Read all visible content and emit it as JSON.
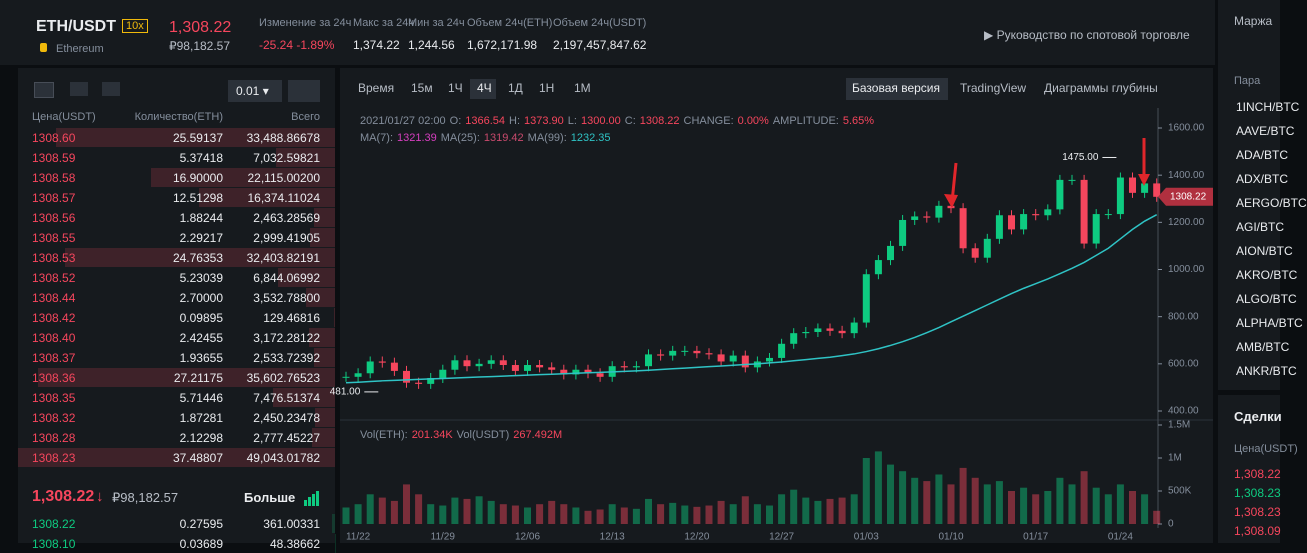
{
  "header": {
    "pair": "ETH/USDT",
    "leverage": "10x",
    "name": "Ethereum",
    "price": "1,308.22",
    "price_rub": "₽98,182.57",
    "stats": [
      {
        "label": "Изменение за 24ч",
        "value": "-25.24 -1.89%"
      },
      {
        "label": "Макс за 24ч",
        "value": "1,374.22"
      },
      {
        "label": "Мин за 24ч",
        "value": "1,244.56"
      },
      {
        "label": "Объем 24ч(ETH)",
        "value": "1,672,171.98"
      },
      {
        "label": "Объем 24ч(USDT)",
        "value": "2,197,457,847.62"
      }
    ],
    "guide": "Руководство по спотовой торговле"
  },
  "orderbook": {
    "step": "0.01",
    "headers": [
      "Цена(USDT)",
      "Количество(ETH)",
      "Всего"
    ],
    "asks": [
      [
        "1308.60",
        "25.59137",
        "33,488.86678"
      ],
      [
        "1308.59",
        "5.37418",
        "7,032.59821"
      ],
      [
        "1308.58",
        "16.90000",
        "22,115.00200"
      ],
      [
        "1308.57",
        "12.51298",
        "16,374.11024"
      ],
      [
        "1308.56",
        "1.88244",
        "2,463.28569"
      ],
      [
        "1308.55",
        "2.29217",
        "2,999.41905"
      ],
      [
        "1308.53",
        "24.76353",
        "32,403.82191"
      ],
      [
        "1308.52",
        "5.23039",
        "6,844.06992"
      ],
      [
        "1308.44",
        "2.70000",
        "3,532.78800"
      ],
      [
        "1308.42",
        "0.09895",
        "129.46816"
      ],
      [
        "1308.40",
        "2.42455",
        "3,172.28122"
      ],
      [
        "1308.37",
        "1.93655",
        "2,533.72392"
      ],
      [
        "1308.36",
        "27.21175",
        "35,602.76523"
      ],
      [
        "1308.35",
        "5.71446",
        "7,476.51374"
      ],
      [
        "1308.32",
        "1.87281",
        "2,450.23478"
      ],
      [
        "1308.28",
        "2.12298",
        "2,777.45227"
      ],
      [
        "1308.23",
        "37.48807",
        "49,043.01782"
      ]
    ],
    "last_price": "1,308.22",
    "arrow": "↓",
    "last_price_rub": "₽98,182.57",
    "more": "Больше",
    "bids": [
      [
        "1308.22",
        "0.27595",
        "361.00331"
      ],
      [
        "1308.10",
        "0.03689",
        "48.38662"
      ]
    ]
  },
  "toolbar": {
    "intervals": [
      "Время",
      "15м",
      "1Ч",
      "4Ч",
      "1Д",
      "1Н",
      "1М"
    ],
    "views": [
      "Базовая версия",
      "TradingView",
      "Диаграммы глубины"
    ]
  },
  "chart_data": {
    "type": "candlestick",
    "info": {
      "time": "2021/01/27 02:00",
      "fields": [
        {
          "label": "O:",
          "value": "1366.54"
        },
        {
          "label": "H:",
          "value": "1373.90"
        },
        {
          "label": "L:",
          "value": "1300.00"
        },
        {
          "label": "C:",
          "value": "1308.22"
        },
        {
          "label": "CHANGE:",
          "value": "0.00%"
        },
        {
          "label": "AMPLITUDE:",
          "value": "5.65%"
        }
      ]
    },
    "ma": [
      {
        "label": "MA(7):",
        "value": "1321.39",
        "color": "#d63fbf"
      },
      {
        "label": "MA(25):",
        "value": "1319.42",
        "color": "#c94a6d"
      },
      {
        "label": "MA(99):",
        "value": "1232.35",
        "color": "#2fc3c5"
      }
    ],
    "vol": [
      {
        "label": "Vol(ETH):",
        "value": "201.34K"
      },
      {
        "label": "Vol(USDT)",
        "value": "267.492M"
      }
    ],
    "categories": [
      null,
      "11/22",
      null,
      null,
      null,
      null,
      null,
      null,
      "11/29",
      null,
      null,
      null,
      null,
      null,
      null,
      "12/06",
      null,
      null,
      null,
      null,
      null,
      null,
      "12/13",
      null,
      null,
      null,
      null,
      null,
      null,
      "12/20",
      null,
      null,
      null,
      null,
      null,
      null,
      "12/27",
      null,
      null,
      null,
      null,
      null,
      null,
      "01/03",
      null,
      null,
      null,
      null,
      null,
      null,
      "01/10",
      null,
      null,
      null,
      null,
      null,
      null,
      "01/17",
      null,
      null,
      null,
      null,
      null,
      null,
      "01/24",
      null,
      null,
      null
    ],
    "closes": [
      545,
      560,
      610,
      605,
      570,
      520,
      515,
      540,
      575,
      615,
      590,
      600,
      615,
      595,
      570,
      595,
      585,
      575,
      555,
      575,
      560,
      545,
      590,
      585,
      590,
      640,
      635,
      655,
      655,
      645,
      640,
      610,
      635,
      585,
      610,
      625,
      685,
      730,
      735,
      750,
      740,
      730,
      775,
      980,
      1040,
      1100,
      1210,
      1225,
      1220,
      1270,
      1260,
      1090,
      1050,
      1130,
      1230,
      1170,
      1235,
      1230,
      1255,
      1380,
      1380,
      1110,
      1235,
      1235,
      1390,
      1325,
      1365,
      1308.22
    ],
    "ma99": [
      520,
      522,
      525,
      528,
      530,
      532,
      534,
      536,
      538,
      540,
      542,
      544,
      546,
      548,
      550,
      552,
      554,
      556,
      558,
      560,
      562,
      564,
      566,
      568,
      570,
      573,
      576,
      579,
      582,
      585,
      588,
      591,
      594,
      597,
      600,
      604,
      608,
      613,
      618,
      623,
      628,
      635,
      642,
      652,
      664,
      678,
      694,
      712,
      732,
      754,
      778,
      802,
      826,
      850,
      874,
      898,
      920,
      940,
      960,
      982,
      1005,
      1030,
      1060,
      1090,
      1130,
      1170,
      1205,
      1232.35
    ],
    "ma99_color": "#2fc3c5",
    "volumes": [
      250000,
      300000,
      450000,
      400000,
      350000,
      600000,
      450000,
      300000,
      280000,
      400000,
      380000,
      420000,
      350000,
      300000,
      280000,
      250000,
      300000,
      350000,
      300000,
      250000,
      200000,
      220000,
      300000,
      250000,
      230000,
      380000,
      300000,
      320000,
      280000,
      260000,
      280000,
      350000,
      300000,
      420000,
      300000,
      280000,
      450000,
      520000,
      400000,
      350000,
      380000,
      400000,
      450000,
      1000000,
      1100000,
      900000,
      800000,
      700000,
      650000,
      750000,
      600000,
      850000,
      700000,
      600000,
      650000,
      500000,
      550000,
      450000,
      500000,
      700000,
      600000,
      800000,
      550000,
      450000,
      600000,
      500000,
      450000,
      200000
    ],
    "ylim": [
      400,
      1600
    ],
    "yticks": [
      {
        "value": 400,
        "label": "400.00"
      },
      {
        "value": 600,
        "label": "600.00"
      },
      {
        "value": 800,
        "label": "800.00"
      },
      {
        "value": 1000,
        "label": "1000.00"
      },
      {
        "value": 1200,
        "label": "1200.00"
      },
      {
        "value": 1400,
        "label": "1400.00"
      },
      {
        "value": 1600,
        "label": "1600.00"
      }
    ],
    "vol_ylim": [
      0,
      1500000
    ],
    "vol_yticks": [
      0,
      {
        "value": 500000,
        "label": "500K"
      },
      {
        "value": 1000000,
        "label": "1M"
      },
      {
        "value": 1500000,
        "label": "1.5M"
      }
    ],
    "annotations": [
      {
        "value": 1475,
        "label": "1475.00",
        "index": 64
      },
      {
        "value": 481,
        "label": "481.00",
        "index": 3
      }
    ],
    "last_tag": {
      "value": 1308.22,
      "label": "1308.22"
    },
    "up_color": "#0ecb81",
    "down_color": "#f6465d"
  },
  "market": {
    "tab": "Маржа",
    "pair_label": "Пара",
    "pairs": [
      "1INCH/BTC",
      "AAVE/BTC",
      "ADA/BTC",
      "ADX/BTC",
      "AERGO/BTC",
      "AGI/BTC",
      "AION/BTC",
      "AKRO/BTC",
      "ALGO/BTC",
      "ALPHA/BTC",
      "AMB/BTC",
      "ANKR/BTC"
    ]
  },
  "trades": {
    "title": "Сделки",
    "header": "Цена(USDT)",
    "prices": [
      {
        "text": "1,308.22",
        "color": "#f6465d"
      },
      {
        "text": "1,308.23",
        "color": "#0ecb81"
      },
      {
        "text": "1,308.23",
        "color": "#f6465d"
      },
      {
        "text": "1,308.09",
        "color": "#f6465d"
      }
    ]
  }
}
